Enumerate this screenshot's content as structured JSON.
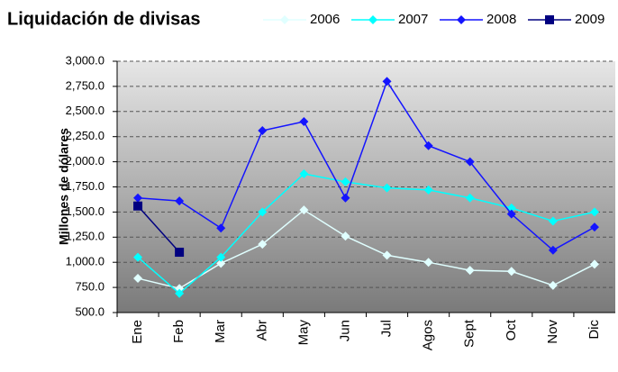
{
  "chart_data": {
    "type": "line",
    "title": "Liquidación de divisas",
    "y_label": "Millones de dólares",
    "categories": [
      "Ene",
      "Feb",
      "Mar",
      "Abr",
      "May",
      "Jun",
      "Jul",
      "Agos",
      "Sept",
      "Oct",
      "Nov",
      "Dic"
    ],
    "series": [
      {
        "name": "2006",
        "color": "#e0ffff",
        "marker": "diamond",
        "values": [
          840,
          740,
          990,
          1180,
          1520,
          1260,
          1070,
          1000,
          920,
          910,
          770,
          980
        ]
      },
      {
        "name": "2007",
        "color": "#00ffff",
        "marker": "diamond",
        "values": [
          1050,
          690,
          1050,
          1500,
          1880,
          1800,
          1740,
          1720,
          1640,
          1540,
          1410,
          1500
        ]
      },
      {
        "name": "2008",
        "color": "#1414ff",
        "marker": "diamond",
        "values": [
          1640,
          1610,
          1340,
          2310,
          2400,
          1640,
          2800,
          2160,
          2000,
          1480,
          1120,
          1350
        ]
      },
      {
        "name": "2009",
        "color": "#000080",
        "marker": "square",
        "values": [
          1560,
          1100,
          null,
          null,
          null,
          null,
          null,
          null,
          null,
          null,
          null,
          null
        ]
      }
    ],
    "ylim": [
      500,
      3000
    ],
    "yticks": [
      {
        "value": 500,
        "label": "500.0"
      },
      {
        "value": 750,
        "label": "750.0"
      },
      {
        "value": 1000,
        "label": "1,000.0"
      },
      {
        "value": 1250,
        "label": "1,250.0"
      },
      {
        "value": 1500,
        "label": "1,500.0"
      },
      {
        "value": 1750,
        "label": "1,750.0"
      },
      {
        "value": 2000,
        "label": "2,000.0"
      },
      {
        "value": 2250,
        "label": "2,250.0"
      },
      {
        "value": 2500,
        "label": "2,500.0"
      },
      {
        "value": 2750,
        "label": "2,750.0"
      },
      {
        "value": 3000,
        "label": "3,000.0"
      }
    ],
    "grid": true
  }
}
